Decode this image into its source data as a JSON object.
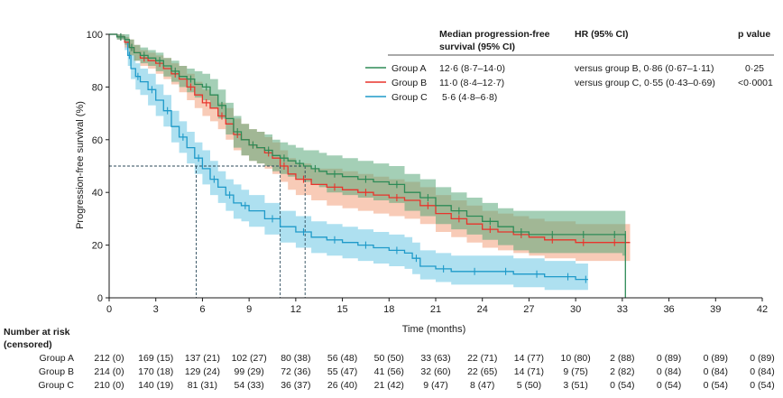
{
  "chart_data": {
    "type": "line",
    "subtype": "kaplan-meier",
    "xlabel": "Time (months)",
    "ylabel": "Progression-free survival (%)",
    "xlim": [
      0,
      42
    ],
    "ylim": [
      0,
      100
    ],
    "xticks": [
      "0",
      "3",
      "6",
      "9",
      "12",
      "15",
      "18",
      "21",
      "24",
      "27",
      "30",
      "33",
      "36",
      "39",
      "42"
    ],
    "yticks": [
      "0",
      "20",
      "40",
      "60",
      "80",
      "100"
    ],
    "median_line_y": 50,
    "medians": [
      5.6,
      11.0,
      12.6
    ],
    "legend_headers": {
      "median": "Median progression-free survival (95% CI)",
      "median_line1": "Median progression-free",
      "median_line2": "survival (95% CI)",
      "hr": "HR (95% CI)",
      "p": "p value"
    },
    "series": [
      {
        "name": "Group A",
        "color": "#2e8b57",
        "band_color": "#5aa77a",
        "median": "12·6 (8·7–14·0)",
        "hr": "versus group B, 0·86 (0·67–1·11)",
        "p": "0·25",
        "x": [
          0,
          0.5,
          1,
          1.3,
          1.6,
          2,
          2.5,
          3,
          3.5,
          4,
          4.5,
          5,
          5.5,
          6,
          6.5,
          7,
          7.5,
          8,
          8.5,
          9,
          9.5,
          10,
          10.5,
          11,
          11.5,
          12,
          12.5,
          13,
          13.5,
          14,
          15,
          16,
          17,
          18,
          19,
          20,
          21,
          22,
          23,
          24,
          25,
          26,
          27,
          28,
          29,
          30,
          31,
          32,
          33,
          33.2,
          33.2
        ],
        "y": [
          100,
          99,
          98,
          95,
          93,
          92,
          91,
          90,
          88,
          86,
          84,
          83,
          81,
          80,
          77,
          73,
          68,
          63,
          60,
          58,
          57,
          56,
          54,
          53,
          52,
          51,
          50,
          49,
          48,
          47,
          46,
          45,
          44,
          43,
          40,
          38,
          35,
          33,
          31,
          29,
          27,
          25,
          24,
          24,
          24,
          24,
          24,
          24,
          24,
          24,
          0
        ],
        "lower": [
          100,
          98,
          96,
          92,
          90,
          89,
          88,
          86,
          84,
          82,
          80,
          78,
          76,
          75,
          72,
          68,
          62,
          57,
          54,
          52,
          51,
          50,
          48,
          47,
          46,
          45,
          44,
          43,
          42,
          40,
          39,
          38,
          37,
          36,
          33,
          31,
          28,
          26,
          24,
          22,
          20,
          18,
          17,
          17,
          17,
          17,
          17,
          17,
          16,
          16,
          0
        ],
        "upper": [
          100,
          100,
          100,
          98,
          96,
          95,
          94,
          93,
          91,
          90,
          88,
          87,
          86,
          85,
          83,
          79,
          74,
          69,
          66,
          64,
          63,
          62,
          60,
          59,
          58,
          57,
          56,
          56,
          55,
          54,
          53,
          52,
          51,
          50,
          47,
          45,
          42,
          40,
          38,
          36,
          34,
          33,
          33,
          33,
          33,
          33,
          33,
          33,
          33,
          33,
          0
        ]
      },
      {
        "name": "Group B",
        "color": "#e8342c",
        "band_color": "#f2a07c",
        "median": "11·0 (8·4–12·7)",
        "hr": "versus group C, 0·55 (0·43–0·69)",
        "p": "<0·0001",
        "x": [
          0,
          0.5,
          1,
          1.3,
          1.6,
          2,
          2.5,
          3,
          3.5,
          4,
          4.5,
          5,
          5.5,
          6,
          6.5,
          7,
          7.5,
          8,
          8.5,
          9,
          9.5,
          10,
          10.5,
          11,
          11.5,
          12,
          13,
          14,
          15,
          16,
          17,
          18,
          19,
          20,
          21,
          22,
          23,
          24,
          25,
          26,
          27,
          28,
          29,
          30,
          31,
          32,
          33,
          33.5
        ],
        "y": [
          100,
          99,
          97,
          95,
          93,
          91,
          90,
          89,
          87,
          85,
          83,
          80,
          77,
          74,
          72,
          69,
          66,
          62,
          60,
          58,
          57,
          55,
          53,
          50,
          47,
          45,
          43,
          42,
          41,
          40,
          39,
          38,
          37,
          35,
          32,
          30,
          28,
          26,
          25,
          24,
          23,
          22,
          22,
          21,
          21,
          21,
          21,
          21
        ],
        "lower": [
          100,
          98,
          95,
          92,
          90,
          88,
          87,
          85,
          83,
          81,
          78,
          75,
          72,
          69,
          67,
          64,
          60,
          56,
          54,
          52,
          51,
          49,
          47,
          44,
          41,
          39,
          37,
          35,
          34,
          33,
          32,
          31,
          30,
          28,
          25,
          23,
          21,
          19,
          18,
          17,
          16,
          15,
          15,
          14,
          14,
          14,
          14,
          14
        ],
        "upper": [
          100,
          100,
          99,
          98,
          96,
          94,
          93,
          92,
          91,
          89,
          88,
          85,
          82,
          79,
          77,
          74,
          72,
          68,
          66,
          64,
          63,
          61,
          59,
          56,
          53,
          51,
          49,
          49,
          48,
          47,
          46,
          45,
          44,
          42,
          39,
          37,
          35,
          33,
          32,
          31,
          30,
          29,
          29,
          28,
          28,
          28,
          28,
          28
        ]
      },
      {
        "name": "Group C",
        "color": "#1f9ac9",
        "band_color": "#6cc6e4",
        "median": "5·6 (4·8–6·8)",
        "hr": "",
        "p": "",
        "x": [
          0,
          0.5,
          1,
          1.2,
          1.4,
          1.7,
          2,
          2.5,
          3,
          3.5,
          4,
          4.5,
          5,
          5.5,
          6,
          6.5,
          7,
          7.5,
          8,
          8.5,
          9,
          10,
          11,
          12,
          13,
          14,
          15,
          16,
          17,
          18,
          19,
          19.5,
          20,
          21,
          22,
          23,
          24,
          25,
          26,
          27,
          28,
          29,
          30,
          30.5,
          30.8
        ],
        "y": [
          100,
          99,
          97,
          92,
          87,
          84,
          82,
          79,
          75,
          71,
          65,
          61,
          57,
          53,
          49,
          45,
          42,
          39,
          36,
          35,
          33,
          30,
          27,
          25,
          23,
          22,
          21,
          20,
          19,
          18,
          17,
          15,
          12,
          11,
          10,
          10,
          10,
          10,
          9,
          9,
          8,
          8,
          7,
          7,
          7
        ],
        "lower": [
          100,
          98,
          94,
          88,
          83,
          79,
          77,
          73,
          69,
          65,
          59,
          55,
          51,
          47,
          43,
          39,
          36,
          33,
          30,
          29,
          27,
          24,
          21,
          19,
          17,
          16,
          15,
          14,
          13,
          12,
          11,
          9,
          7,
          6,
          5,
          5,
          5,
          5,
          4,
          4,
          3,
          3,
          3,
          3,
          3
        ],
        "upper": [
          100,
          100,
          99,
          96,
          92,
          89,
          87,
          85,
          81,
          77,
          71,
          67,
          63,
          59,
          56,
          52,
          48,
          45,
          43,
          41,
          39,
          36,
          33,
          31,
          29,
          28,
          27,
          26,
          25,
          24,
          23,
          21,
          18,
          17,
          16,
          16,
          16,
          16,
          15,
          15,
          14,
          14,
          13,
          13,
          13
        ]
      }
    ],
    "risk_table": {
      "title_line1": "Number at risk",
      "title_line2": "(censored)",
      "times": [
        0,
        3,
        6,
        9,
        12,
        15,
        18,
        21,
        24,
        27,
        30,
        33,
        36,
        39,
        42
      ],
      "rows": [
        {
          "label": "Group A",
          "cells": [
            "212 (0)",
            "169 (15)",
            "137 (21)",
            "102 (27)",
            "80 (38)",
            "56 (48)",
            "50 (50)",
            "33 (63)",
            "22 (71)",
            "14 (77)",
            "10 (80)",
            "2 (88)",
            "0 (89)",
            "0 (89)",
            "0 (89)"
          ]
        },
        {
          "label": "Group B",
          "cells": [
            "214 (0)",
            "170 (18)",
            "129 (24)",
            "99 (29)",
            "72 (36)",
            "55 (47)",
            "41 (56)",
            "32 (60)",
            "22 (65)",
            "14 (71)",
            "9 (75)",
            "2 (82)",
            "0 (84)",
            "0 (84)",
            "0 (84)"
          ]
        },
        {
          "label": "Group C",
          "cells": [
            "210 (0)",
            "140 (19)",
            "81 (31)",
            "54 (33)",
            "36 (37)",
            "26 (40)",
            "21 (42)",
            "9 (47)",
            "8 (47)",
            "5 (50)",
            "3 (51)",
            "0 (54)",
            "0 (54)",
            "0 (54)",
            "0 (54)"
          ]
        }
      ]
    }
  }
}
